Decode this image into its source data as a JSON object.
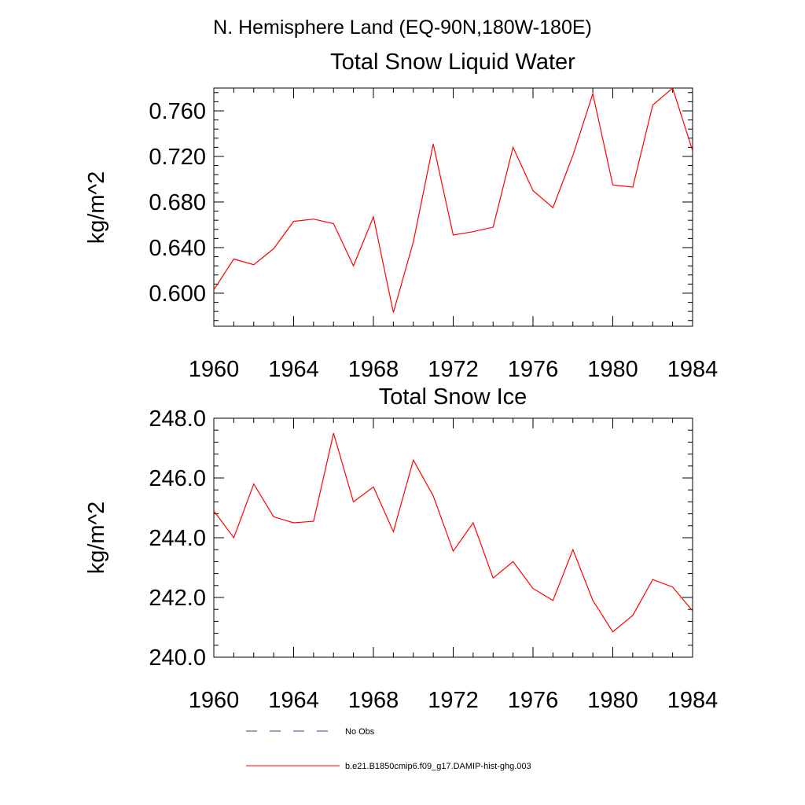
{
  "figure": {
    "title": "N. Hemisphere Land (EQ-90N,180W-180E)"
  },
  "chart_data": [
    {
      "type": "line",
      "title": "Total Snow Liquid Water",
      "xlabel": "",
      "ylabel": "kg/m^2",
      "xlim": [
        1960,
        1984
      ],
      "ylim": [
        0.571,
        0.78
      ],
      "x_ticks": [
        "1960",
        "1964",
        "1968",
        "1972",
        "1976",
        "1980",
        "1984"
      ],
      "y_ticks": [
        "0.600",
        "0.640",
        "0.680",
        "0.720",
        "0.760"
      ],
      "grid": false,
      "series": [
        {
          "name": "b.e21.B1850cmip6.f09_g17.DAMIP-hist-ghg.003",
          "color": "#ff0000",
          "x": [
            1960,
            1961,
            1962,
            1963,
            1964,
            1965,
            1966,
            1967,
            1968,
            1969,
            1970,
            1971,
            1972,
            1973,
            1974,
            1975,
            1976,
            1977,
            1978,
            1979,
            1980,
            1981,
            1982,
            1983,
            1984
          ],
          "y": [
            0.603,
            0.63,
            0.625,
            0.639,
            0.663,
            0.665,
            0.661,
            0.624,
            0.667,
            0.583,
            0.645,
            0.731,
            0.651,
            0.654,
            0.658,
            0.728,
            0.69,
            0.675,
            0.721,
            0.775,
            0.695,
            0.693,
            0.765,
            0.78,
            0.725
          ]
        }
      ]
    },
    {
      "type": "line",
      "title": "Total Snow Ice",
      "xlabel": "",
      "ylabel": "kg/m^2",
      "xlim": [
        1960,
        1984
      ],
      "ylim": [
        240.0,
        248.0
      ],
      "x_ticks": [
        "1960",
        "1964",
        "1968",
        "1972",
        "1976",
        "1980",
        "1984"
      ],
      "y_ticks": [
        "240.0",
        "242.0",
        "244.0",
        "246.0",
        "248.0"
      ],
      "grid": false,
      "series": [
        {
          "name": "b.e21.B1850cmip6.f09_g17.DAMIP-hist-ghg.003",
          "color": "#ff0000",
          "x": [
            1960,
            1961,
            1962,
            1963,
            1964,
            1965,
            1966,
            1967,
            1968,
            1969,
            1970,
            1971,
            1972,
            1973,
            1974,
            1975,
            1976,
            1977,
            1978,
            1979,
            1980,
            1981,
            1982,
            1983,
            1984
          ],
          "y": [
            244.9,
            244.0,
            245.8,
            244.7,
            244.5,
            244.55,
            247.5,
            245.2,
            245.7,
            244.2,
            246.6,
            245.4,
            243.55,
            244.5,
            242.65,
            243.2,
            242.3,
            241.9,
            243.6,
            241.9,
            240.85,
            241.4,
            242.6,
            242.35,
            241.55
          ]
        }
      ]
    }
  ],
  "legend": {
    "placement": "bottom",
    "items": [
      {
        "label": "No Obs",
        "style": "dashed",
        "color": "#3a3a7a"
      },
      {
        "label": "b.e21.B1850cmip6.f09_g17.DAMIP-hist-ghg.003",
        "style": "solid",
        "color": "#ff0000"
      }
    ]
  }
}
